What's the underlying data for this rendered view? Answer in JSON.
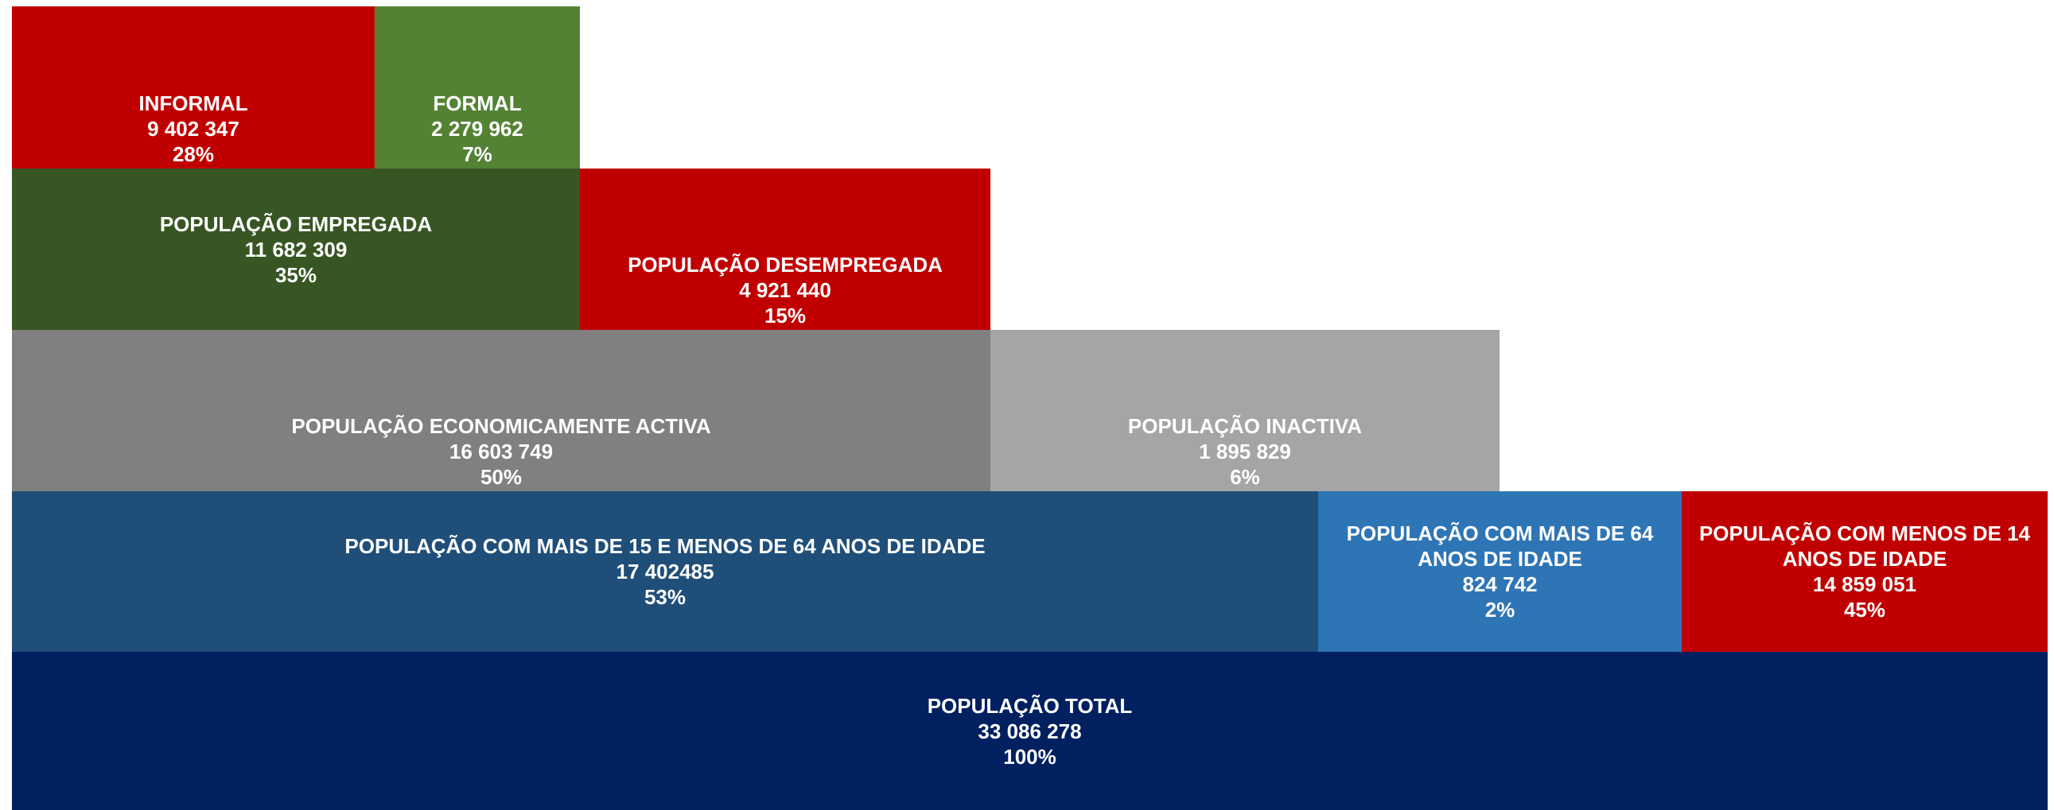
{
  "blocks": [
    {
      "label": "INFORMAL",
      "value": "9 402 347",
      "percent": "28%"
    },
    {
      "label": "FORMAL",
      "value": "2 279 962",
      "percent": "7%"
    },
    {
      "label": "POPULAÇÃO EMPREGADA",
      "value": "11 682 309",
      "percent": "35%"
    },
    {
      "label": "POPULAÇÃO DESEMPREGADA",
      "value": "4 921 440",
      "percent": "15%"
    },
    {
      "label": "POPULAÇÃO ECONOMICAMENTE ACTIVA",
      "value": "16 603 749",
      "percent": "50%"
    },
    {
      "label": "POPULAÇÃO INACTIVA",
      "value": "1 895 829",
      "percent": "6%"
    },
    {
      "label": "POPULAÇÃO COM MAIS DE 15 E MENOS DE 64 ANOS DE IDADE",
      "value": "17 402485",
      "percent": "53%"
    },
    {
      "label": "POPULAÇÃO COM MAIS DE 64 ANOS DE IDADE",
      "value": "824 742",
      "percent": "2%"
    },
    {
      "label": "POPULAÇÃO COM MENOS DE 14 ANOS DE IDADE",
      "value": "14 859 051",
      "percent": "45%"
    },
    {
      "label": "POPULAÇÃO TOTAL",
      "value": "33 086 278",
      "percent": "100%"
    }
  ]
}
